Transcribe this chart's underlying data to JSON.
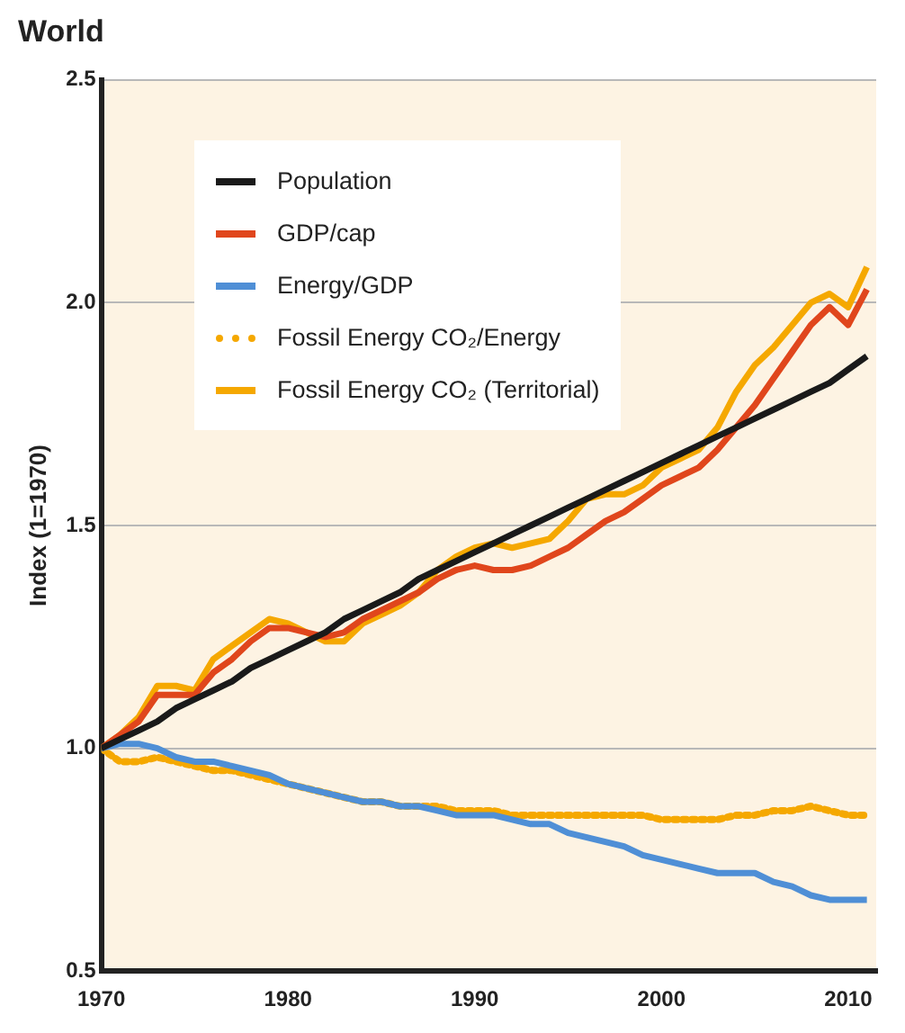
{
  "chart_data": {
    "type": "line",
    "title": "World",
    "ylabel": "Index (1=1970)",
    "x": [
      1970,
      1971,
      1972,
      1973,
      1974,
      1975,
      1976,
      1977,
      1978,
      1979,
      1980,
      1981,
      1982,
      1983,
      1984,
      1985,
      1986,
      1987,
      1988,
      1989,
      1990,
      1991,
      1992,
      1993,
      1994,
      1995,
      1996,
      1997,
      1998,
      1999,
      2000,
      2001,
      2002,
      2003,
      2004,
      2005,
      2006,
      2007,
      2008,
      2009,
      2010,
      2011
    ],
    "xlim": [
      1970,
      2011.5
    ],
    "xticks": [
      1970,
      1980,
      1990,
      2000,
      2010
    ],
    "ylim": [
      0.5,
      2.5
    ],
    "yticks": [
      0.5,
      {
        "value": 1,
        "label": "1.0"
      },
      1.5,
      {
        "value": 2,
        "label": "2.0"
      },
      2.5
    ],
    "grid": "y",
    "legend": "top left",
    "marker": "none",
    "line_style": "solid",
    "series": [
      {
        "name": "Population",
        "color": "#1a1a1a",
        "values": [
          1.0,
          1.02,
          1.04,
          1.06,
          1.09,
          1.11,
          1.13,
          1.15,
          1.18,
          1.2,
          1.22,
          1.24,
          1.26,
          1.29,
          1.31,
          1.33,
          1.35,
          1.38,
          1.4,
          1.42,
          1.44,
          1.46,
          1.48,
          1.5,
          1.52,
          1.54,
          1.56,
          1.58,
          1.6,
          1.62,
          1.64,
          1.66,
          1.68,
          1.7,
          1.72,
          1.74,
          1.76,
          1.78,
          1.8,
          1.82,
          1.85,
          1.88
        ]
      },
      {
        "name": "GDP/cap",
        "color": "#e0461c",
        "values": [
          1.0,
          1.03,
          1.06,
          1.12,
          1.12,
          1.12,
          1.17,
          1.2,
          1.24,
          1.27,
          1.27,
          1.26,
          1.25,
          1.26,
          1.29,
          1.31,
          1.33,
          1.35,
          1.38,
          1.4,
          1.41,
          1.4,
          1.4,
          1.41,
          1.43,
          1.45,
          1.48,
          1.51,
          1.53,
          1.56,
          1.59,
          1.61,
          1.63,
          1.67,
          1.72,
          1.77,
          1.83,
          1.89,
          1.95,
          1.99,
          1.95,
          2.03
        ]
      },
      {
        "name": "Energy/GDP",
        "color": "#4f8fd6",
        "values": [
          1.0,
          1.01,
          1.01,
          1.0,
          0.98,
          0.97,
          0.97,
          0.96,
          0.95,
          0.94,
          0.92,
          0.91,
          0.9,
          0.89,
          0.88,
          0.88,
          0.87,
          0.87,
          0.86,
          0.85,
          0.85,
          0.85,
          0.84,
          0.83,
          0.83,
          0.81,
          0.8,
          0.79,
          0.78,
          0.76,
          0.75,
          0.74,
          0.73,
          0.72,
          0.72,
          0.72,
          0.7,
          0.69,
          0.67,
          0.66,
          0.66,
          0.66
        ]
      },
      {
        "name": "Fossil Energy CO₂/Energy",
        "color": "#f5a800",
        "line_style": "dotted",
        "values": [
          1.0,
          0.97,
          0.97,
          0.98,
          0.97,
          0.96,
          0.95,
          0.95,
          0.94,
          0.93,
          0.92,
          0.91,
          0.9,
          0.89,
          0.88,
          0.88,
          0.87,
          0.87,
          0.87,
          0.86,
          0.86,
          0.86,
          0.85,
          0.85,
          0.85,
          0.85,
          0.85,
          0.85,
          0.85,
          0.85,
          0.84,
          0.84,
          0.84,
          0.84,
          0.85,
          0.85,
          0.86,
          0.86,
          0.87,
          0.86,
          0.85,
          0.85
        ]
      },
      {
        "name": "Fossil Energy CO₂ (Territorial)",
        "color": "#f5a800",
        "values": [
          1.0,
          1.03,
          1.07,
          1.14,
          1.14,
          1.13,
          1.2,
          1.23,
          1.26,
          1.29,
          1.28,
          1.26,
          1.24,
          1.24,
          1.28,
          1.3,
          1.32,
          1.35,
          1.4,
          1.43,
          1.45,
          1.46,
          1.45,
          1.46,
          1.47,
          1.51,
          1.56,
          1.57,
          1.57,
          1.59,
          1.63,
          1.65,
          1.67,
          1.72,
          1.8,
          1.86,
          1.9,
          1.95,
          2.0,
          2.02,
          1.99,
          2.08
        ]
      }
    ]
  }
}
